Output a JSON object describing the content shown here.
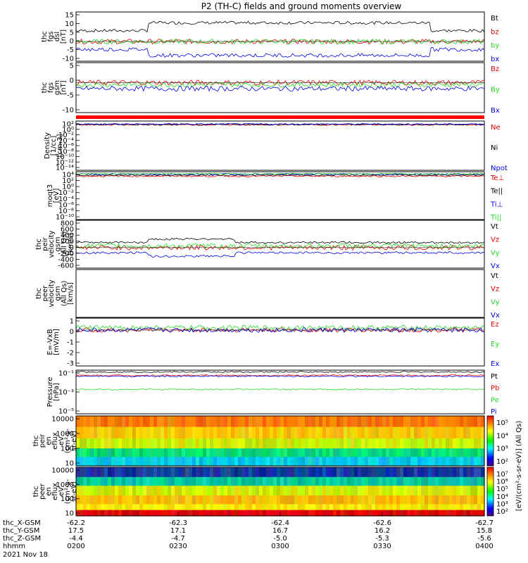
{
  "title": "P2 (TH-C) fields and ground moments overview",
  "colors": {
    "black": "#000000",
    "red": "#e00000",
    "green": "#22dd22",
    "blue": "#0000e0"
  },
  "chart_data": [
    {
      "type": "line",
      "id": "fgs_dsl",
      "ylabel_lines": [
        "thc",
        "fgs",
        "dsl",
        "[nT]"
      ],
      "ylim": [
        -10,
        15
      ],
      "yticks": [
        "15",
        "10",
        "5",
        "0",
        "-5",
        "-10"
      ],
      "series": [
        {
          "name": "Bt",
          "color": "black",
          "level": 5.5
        },
        {
          "name": "bz",
          "color": "red",
          "level": 0
        },
        {
          "name": "by",
          "color": "green",
          "level": 0
        },
        {
          "name": "bx",
          "color": "blue",
          "level": -4
        }
      ]
    },
    {
      "type": "line",
      "id": "fgs_gsm",
      "ylabel_lines": [
        "thc",
        "fgs",
        "gsm",
        "[nT]"
      ],
      "ylim": [
        -15,
        10
      ],
      "yticks": [
        "5",
        "0",
        "-5",
        "-10"
      ],
      "series": [
        {
          "name": "Bz",
          "color": "red",
          "level": 0
        },
        {
          "name": "By",
          "color": "green",
          "level": -1
        },
        {
          "name": "Bx",
          "color": "blue",
          "level": -3
        }
      ]
    },
    {
      "type": "line",
      "id": "density",
      "ylabel_lines": [
        "Density",
        "[1/cc]",
        "[cm-3]"
      ],
      "ylim": [
        -14,
        2
      ],
      "log": true,
      "yticks": [
        "10²",
        "10⁰",
        "10⁻²",
        "10⁻⁴",
        "10⁻⁶",
        "10⁻⁸",
        "10⁻¹⁰",
        "10⁻¹²",
        "10⁻¹⁴"
      ],
      "series": [
        {
          "name": "Ne",
          "color": "red",
          "level": 0.8
        },
        {
          "name": "Ni",
          "color": "black",
          "level": 0.9
        },
        {
          "name": "Npot",
          "color": "blue",
          "level": 1.0
        }
      ]
    },
    {
      "type": "line",
      "id": "temperature",
      "ylabel_lines": [
        "moqt3",
        "[eV]"
      ],
      "ylim": [
        -10,
        4
      ],
      "log": true,
      "yticks": [
        "10⁴",
        "10²",
        "10⁰",
        "10⁻²",
        "10⁻⁴",
        "10⁻⁶",
        "10⁻⁸",
        "10⁻¹⁰"
      ],
      "series": [
        {
          "name": "Te⊥",
          "color": "red",
          "level": 2.7
        },
        {
          "name": "Te||",
          "color": "black",
          "level": 3.0
        },
        {
          "name": "Ti⊥",
          "color": "blue",
          "level": 3.3
        },
        {
          "name": "Ti||",
          "color": "green",
          "level": 3.4
        }
      ]
    },
    {
      "type": "line",
      "id": "peir_velocity",
      "ylabel_lines": [
        "thc",
        "peir",
        "velocity",
        "gsm",
        "(All Qs)",
        "[km/s]"
      ],
      "ylim": [
        -600,
        800
      ],
      "yticks": [
        "800",
        "600",
        "400",
        "200",
        "0",
        "-200",
        "-400",
        "-600"
      ],
      "series": [
        {
          "name": "Vt",
          "color": "black",
          "level": 150
        },
        {
          "name": "Vz",
          "color": "red",
          "level": 0
        },
        {
          "name": "Vy",
          "color": "green",
          "level": 50
        },
        {
          "name": "Vx",
          "color": "blue",
          "level": -150
        }
      ]
    },
    {
      "type": "line",
      "id": "peer_velocity",
      "ylabel_lines": [
        "thc",
        "peer",
        "velocity",
        "gsm",
        "(All Qs)",
        "[km/s]"
      ],
      "ylim": [
        0,
        1
      ],
      "yticks": [],
      "series": [
        {
          "name": "Vt",
          "color": "black",
          "level": null
        },
        {
          "name": "Vz",
          "color": "red",
          "level": null
        },
        {
          "name": "Vy",
          "color": "green",
          "level": null
        },
        {
          "name": "Vx",
          "color": "blue",
          "level": null
        }
      ]
    },
    {
      "type": "line",
      "id": "efield",
      "ylabel_lines": [
        "E=-VxB",
        "[mV/m]"
      ],
      "ylim": [
        -3,
        1
      ],
      "yticks": [
        "1",
        "0",
        "-1",
        "-2",
        "-3"
      ],
      "series": [
        {
          "name": "Ez",
          "color": "red",
          "level": 0
        },
        {
          "name": "Ey",
          "color": "green",
          "level": 0.2
        },
        {
          "name": "Ex",
          "color": "blue",
          "level": 0
        }
      ]
    },
    {
      "type": "line",
      "id": "pressure",
      "ylabel_lines": [
        "Pressure",
        "[nPa]"
      ],
      "ylim": [
        -6,
        -1
      ],
      "log": true,
      "yticks": [
        "10⁻¹",
        "10⁻³",
        "10⁻⁵"
      ],
      "series": [
        {
          "name": "Pt",
          "color": "black",
          "level": -1.2
        },
        {
          "name": "Pb",
          "color": "red",
          "level": -1.6
        },
        {
          "name": "Pe",
          "color": "green",
          "level": -3.2
        },
        {
          "name": "Pi",
          "color": "blue",
          "level": -1.7
        }
      ]
    },
    {
      "type": "heatmap",
      "id": "peir_spectrogram",
      "ylabel_lines": [
        "thc",
        "peir",
        "en",
        "eflux",
        "eV",
        "(cm²-s-",
        "sr-eV)"
      ],
      "ylim": [
        5,
        30000
      ],
      "log": true,
      "yticks": [
        "10000",
        "1000",
        "100",
        "10"
      ],
      "colorbar_ticks": [
        "10⁵",
        "10⁴",
        "10³",
        "10²"
      ]
    },
    {
      "type": "heatmap",
      "id": "peer_spectrogram",
      "ylabel_lines": [
        "thc",
        "peer",
        "en",
        "eflux",
        "eV",
        "(cm²-s-",
        "sr-eV)"
      ],
      "ylim": [
        5,
        30000
      ],
      "log": true,
      "yticks": [
        "10000",
        "1000",
        "100",
        "10"
      ],
      "colorbar_ticks": [
        "10⁷",
        "10⁶",
        "10⁵",
        "10⁴",
        "10³",
        "10²"
      ]
    }
  ],
  "colorbar_label": "[eV/(cm²-s-sr-eV)] (All Qs)",
  "xaxis": {
    "rows": [
      {
        "label": "thc_X-GSM",
        "values": [
          "-62.2",
          "-62.3",
          "-62.4",
          "-62.6",
          "-62.7"
        ]
      },
      {
        "label": "thc_Y-GSM",
        "values": [
          "17.5",
          "17.1",
          "16.7",
          "16.2",
          "15.8"
        ]
      },
      {
        "label": "thc_Z-GSM",
        "values": [
          "-4.4",
          "-4.7",
          "-5.0",
          "-5.3",
          "-5.6"
        ]
      },
      {
        "label": "hhmm",
        "values": [
          "0200",
          "0230",
          "0300",
          "0330",
          "0400"
        ]
      }
    ],
    "date": "2021 Nov 18"
  }
}
